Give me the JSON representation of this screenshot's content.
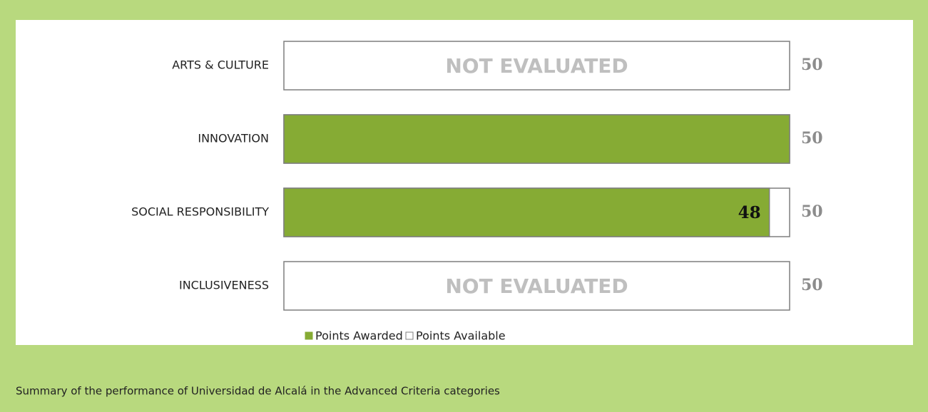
{
  "chart_data": {
    "type": "bar",
    "categories": [
      "ARTS & CULTURE",
      "INNOVATION",
      "SOCIAL RESPONSIBILITY",
      "INCLUSIVENESS"
    ],
    "series": [
      {
        "name": "Points Awarded",
        "color": "#86ab34",
        "values": [
          null,
          50,
          48,
          null
        ],
        "value_labels": [
          "NOT EVALUATED",
          null,
          "48",
          "NOT EVALUATED"
        ]
      },
      {
        "name": "Points Available",
        "color": "#ffffff",
        "values": [
          50,
          50,
          50,
          50
        ]
      }
    ],
    "xlim": [
      0,
      50
    ]
  },
  "caption": "Summary of the performance of Universidad de Alcalá in the Advanced Criteria categories"
}
